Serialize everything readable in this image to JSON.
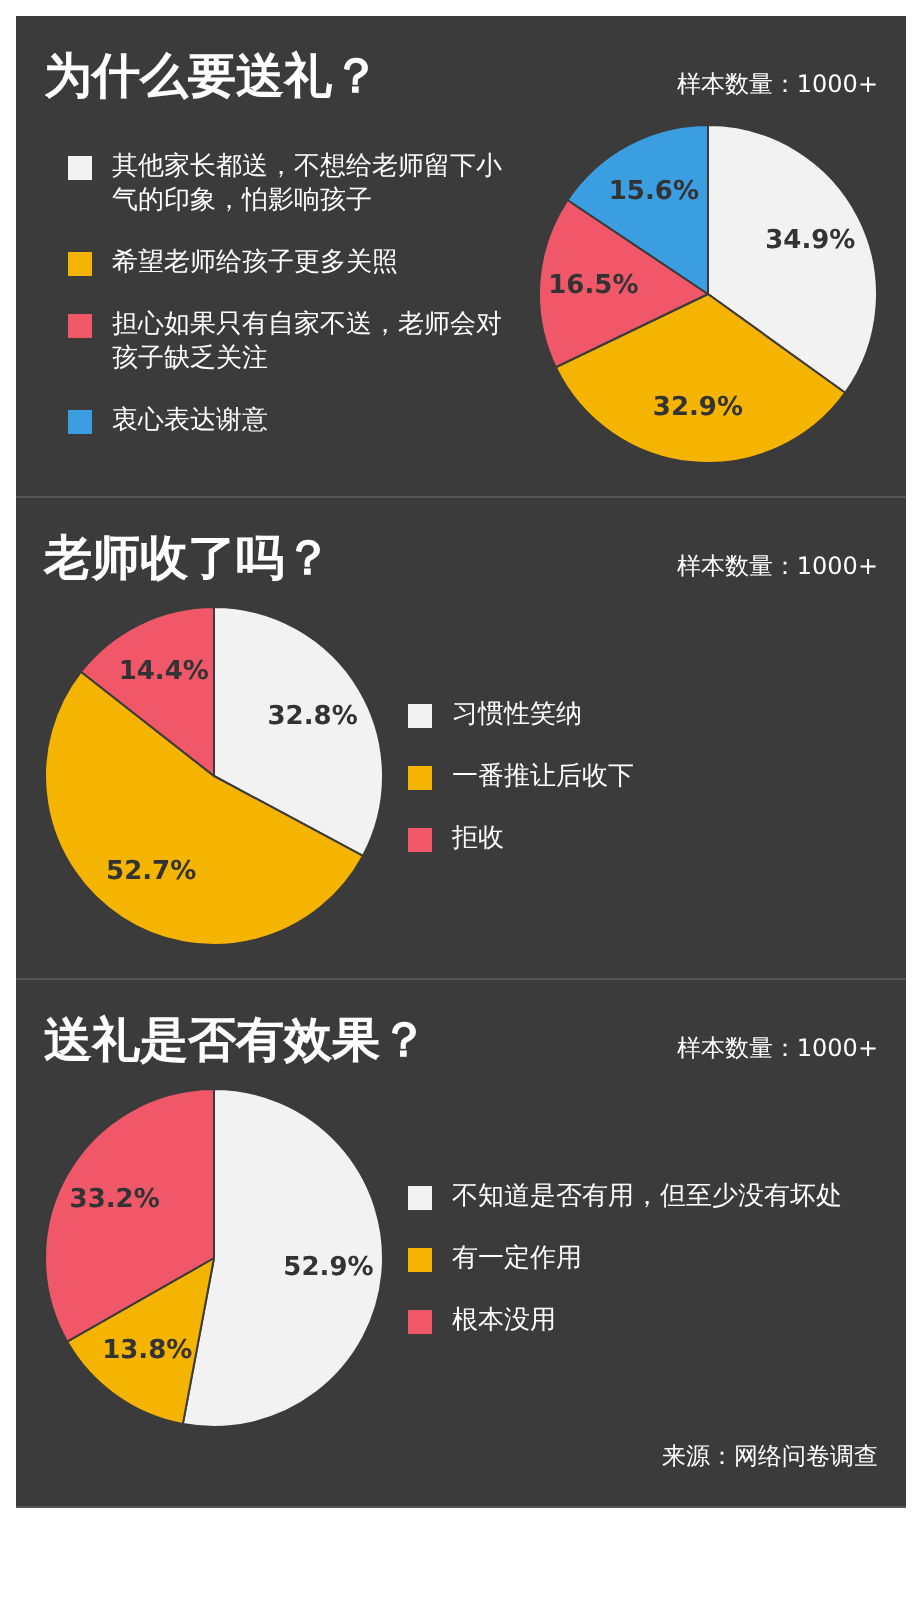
{
  "chart_data": [
    {
      "type": "pie",
      "title": "为什么要送礼？",
      "subtitle": "样本数量：1000+",
      "categories": [
        "其他家长都送，不想给老师留下小气的印象，怕影响孩子",
        "希望老师给孩子更多关照",
        "担心如果只有自家不送，老师会对孩子缺乏关注",
        "衷心表达谢意"
      ],
      "values": [
        34.9,
        32.9,
        16.5,
        15.6
      ],
      "colors": [
        "#f2f2f2",
        "#f5b400",
        "#f0586a",
        "#3a9ee0"
      ],
      "value_labels": [
        "34.9%",
        "32.9%",
        "16.5%",
        "15.6%"
      ],
      "legend": "left"
    },
    {
      "type": "pie",
      "title": "老师收了吗？",
      "subtitle": "样本数量：1000+",
      "categories": [
        "习惯性笑纳",
        "一番推让后收下",
        "拒收"
      ],
      "values": [
        32.8,
        52.7,
        14.4
      ],
      "colors": [
        "#f2f2f2",
        "#f5b400",
        "#f0586a"
      ],
      "value_labels": [
        "32.8%",
        "52.7%",
        "14.4%"
      ],
      "legend": "right"
    },
    {
      "type": "pie",
      "title": "送礼是否有效果？",
      "subtitle": "样本数量：1000+",
      "categories": [
        "不知道是否有用，但至少没有坏处",
        "有一定作用",
        "根本没用"
      ],
      "values": [
        52.9,
        13.8,
        33.2
      ],
      "colors": [
        "#f2f2f2",
        "#f5b400",
        "#f0586a"
      ],
      "value_labels": [
        "52.9%",
        "13.8%",
        "33.2%"
      ],
      "legend": "right",
      "annotations": [
        "来源：网络问卷调查"
      ]
    }
  ]
}
